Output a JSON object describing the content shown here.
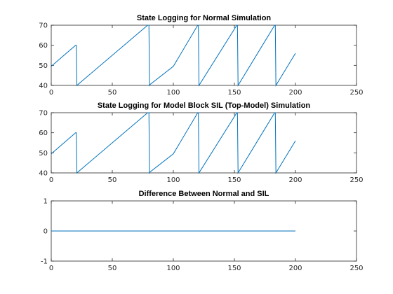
{
  "chart_data": [
    {
      "type": "line",
      "title": "State Logging for Normal Simulation",
      "xlabel": "",
      "ylabel": "",
      "xlim": [
        0,
        250
      ],
      "ylim": [
        40,
        70
      ],
      "xticks": [
        0,
        50,
        100,
        150,
        200,
        250
      ],
      "yticks": [
        40,
        50,
        60,
        70
      ],
      "color": "#0072bd",
      "x": [
        0,
        20,
        20.5,
        21,
        79,
        80,
        80.5,
        81,
        100,
        120,
        120.5,
        121,
        152,
        152.5,
        153,
        183,
        183.5,
        184,
        200
      ],
      "y": [
        49.5,
        60,
        60,
        40,
        70,
        70,
        40,
        40.5,
        49.5,
        70,
        70,
        40,
        70,
        70,
        40,
        70,
        70,
        40,
        56
      ]
    },
    {
      "type": "line",
      "title": "State Logging for Model Block SIL (Top-Model) Simulation",
      "xlabel": "",
      "ylabel": "",
      "xlim": [
        0,
        250
      ],
      "ylim": [
        40,
        70
      ],
      "xticks": [
        0,
        50,
        100,
        150,
        200,
        250
      ],
      "yticks": [
        40,
        50,
        60,
        70
      ],
      "color": "#0072bd",
      "x": [
        0,
        20,
        20.5,
        21,
        79,
        80,
        80.5,
        81,
        100,
        120,
        120.5,
        121,
        152,
        152.5,
        153,
        183,
        183.5,
        184,
        200
      ],
      "y": [
        49.5,
        60,
        60,
        40,
        70,
        70,
        40,
        40.5,
        49.5,
        70,
        70,
        40,
        70,
        70,
        40,
        70,
        70,
        40,
        56
      ]
    },
    {
      "type": "line",
      "title": "Difference Between Normal and SIL",
      "xlabel": "",
      "ylabel": "",
      "xlim": [
        0,
        250
      ],
      "ylim": [
        -1,
        1
      ],
      "xticks": [
        0,
        50,
        100,
        150,
        200,
        250
      ],
      "yticks": [
        -1,
        0,
        1
      ],
      "color": "#0072bd",
      "x": [
        0,
        200
      ],
      "y": [
        0,
        0
      ]
    }
  ]
}
